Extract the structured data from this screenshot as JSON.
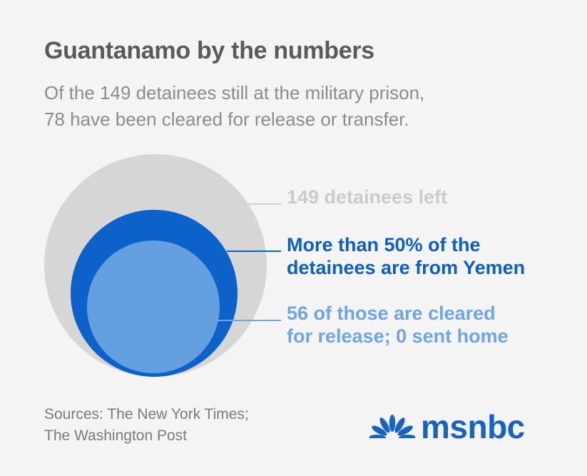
{
  "title": "Guantanamo by the numbers",
  "subtitle": {
    "line1": "Of the 149 detainees still at the military prison,",
    "line2": "78 have been cleared for release or transfer."
  },
  "diagram": {
    "total": {
      "label": "149 detainees left",
      "color": "#d6d6d6",
      "text_color": "#cbcbcb",
      "value": 149
    },
    "yemen": {
      "label_line1": "More than 50% of the",
      "label_line2": "detainees are from Yemen",
      "color": "#0d62c9",
      "text_color": "#0d5fc4"
    },
    "cleared": {
      "label_line1": "56 of those are cleared",
      "label_line2": "for release; 0 sent home",
      "color": "#64a0e0",
      "text_color": "#6fa5e3",
      "cleared_value": 56,
      "sent_home_value": 0
    }
  },
  "sources": {
    "line1": "Sources: The New York Times;",
    "line2": "The Washington Post"
  },
  "logo": {
    "text": "msnbc",
    "icon": "peacock-icon",
    "colors": [
      "#1664c0"
    ]
  }
}
